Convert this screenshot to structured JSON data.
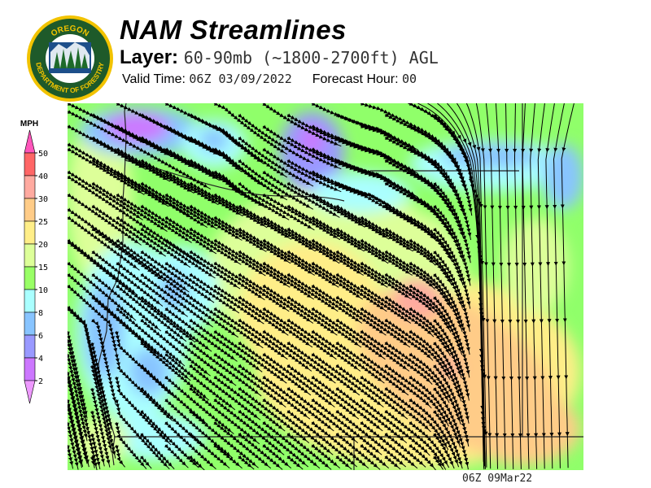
{
  "logo": {
    "top_text": "OREGON",
    "bottom_text": "DEPARTMENT OF FORESTRY",
    "colors": {
      "ring": "#f2c300",
      "field": "#1e5a2a"
    }
  },
  "header": {
    "title": "NAM Streamlines",
    "layer_label": "Layer:",
    "layer_value": "60-90mb (~1800-2700ft) AGL",
    "valid_time_label": "Valid Time:",
    "valid_time_value": "06Z 03/09/2022",
    "forecast_hour_label": "Forecast Hour:",
    "forecast_hour_value": "00"
  },
  "legend": {
    "unit": "MPH",
    "ticks": [
      "50",
      "40",
      "30",
      "25",
      "20",
      "15",
      "10",
      "8",
      "6",
      "4",
      "2"
    ],
    "colors": [
      "#ff55bb",
      "#ff6666",
      "#ffaaa0",
      "#ffcc88",
      "#ffee88",
      "#ddff99",
      "#99ff66",
      "#aaffff",
      "#88c4ff",
      "#9999ff",
      "#cc77ff",
      "#ee99ff"
    ]
  },
  "map": {
    "field": "wind speed with streamlines",
    "timestamp": "06Z 09Mar22"
  }
}
